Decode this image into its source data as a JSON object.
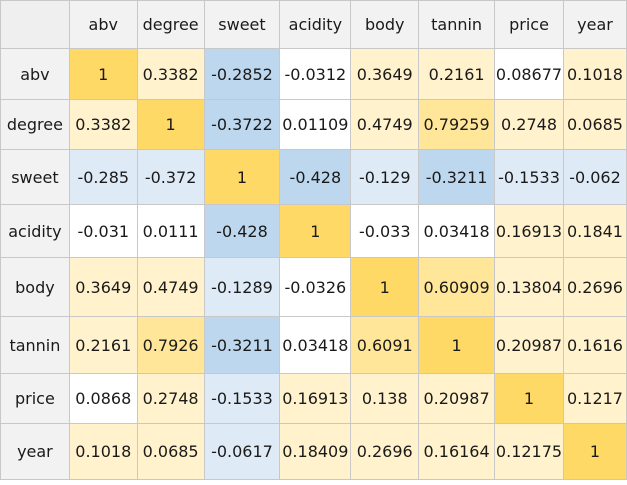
{
  "columns": [
    "abv",
    "degree",
    "sweet",
    "acidity",
    "body",
    "tannin",
    "price",
    "year"
  ],
  "rows": [
    {
      "label": "abv",
      "cells": [
        "1",
        "0.3382",
        "-0.2852",
        "-0.0312",
        "0.3649",
        "0.2161",
        "0.08677",
        "0.1018"
      ]
    },
    {
      "label": "degree",
      "cells": [
        "0.3382",
        "1",
        "-0.3722",
        "0.01109",
        "0.4749",
        "0.79259",
        "0.2748",
        "0.0685"
      ]
    },
    {
      "label": "sweet",
      "cells": [
        "-0.285",
        "-0.372",
        "1",
        "-0.428",
        "-0.129",
        "-0.3211",
        "-0.1533",
        "-0.062"
      ]
    },
    {
      "label": "acidity",
      "cells": [
        "-0.031",
        "0.0111",
        "-0.428",
        "1",
        "-0.033",
        "0.03418",
        "0.16913",
        "0.1841"
      ]
    },
    {
      "label": "body",
      "cells": [
        "0.3649",
        "0.4749",
        "-0.1289",
        "-0.0326",
        "1",
        "0.60909",
        "0.13804",
        "0.2696"
      ]
    },
    {
      "label": "tannin",
      "cells": [
        "0.2161",
        "0.7926",
        "-0.3211",
        "0.03418",
        "0.6091",
        "1",
        "0.20987",
        "0.1616"
      ]
    },
    {
      "label": "price",
      "cells": [
        "0.0868",
        "0.2748",
        "-0.1533",
        "0.16913",
        "0.138",
        "0.20987",
        "1",
        "0.1217"
      ]
    },
    {
      "label": "year",
      "cells": [
        "0.1018",
        "0.0685",
        "-0.0617",
        "0.18409",
        "0.2696",
        "0.16164",
        "0.12175",
        "1"
      ]
    }
  ],
  "cell_fill": [
    [
      "one",
      "lo",
      "neg",
      "white",
      "lo",
      "lo",
      "white",
      "lo"
    ],
    [
      "lo",
      "one",
      "neg",
      "white",
      "lo",
      "hi",
      "lo",
      "lo"
    ],
    [
      "negw",
      "negw",
      "one",
      "neg",
      "negw",
      "neg",
      "negw",
      "negw"
    ],
    [
      "white",
      "white",
      "neg",
      "one",
      "white",
      "white",
      "lo",
      "lo"
    ],
    [
      "lo",
      "lo",
      "negw",
      "white",
      "one",
      "hi",
      "lo",
      "lo"
    ],
    [
      "lo",
      "hi",
      "neg",
      "white",
      "hi",
      "one",
      "lo",
      "lo"
    ],
    [
      "white",
      "lo",
      "negw",
      "lo",
      "lo",
      "lo",
      "one",
      "lo"
    ],
    [
      "lo",
      "lo",
      "negw",
      "lo",
      "lo",
      "lo",
      "lo",
      "one"
    ]
  ],
  "colors": {
    "one": "#ffd966",
    "hi": "#ffe699",
    "lo": "#fff2cc",
    "white": "#ffffff",
    "negw": "#deebf7",
    "neg": "#bdd7ee",
    "header": "#f2f2f2",
    "border": "#c8c8c8"
  }
}
